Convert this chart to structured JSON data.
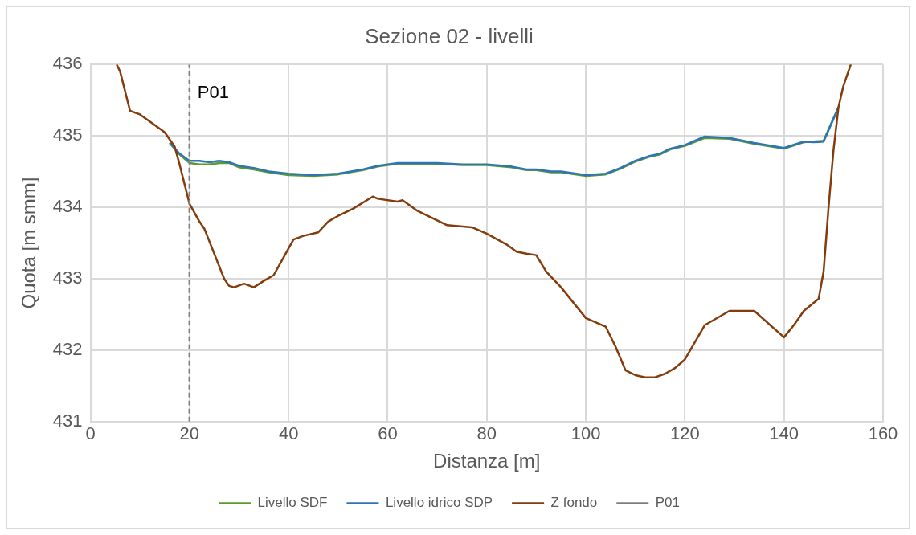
{
  "chart_data": {
    "type": "line",
    "title": "Sezione 02 - livelli",
    "xlabel": "Distanza [m]",
    "ylabel": "Quota [m smm]",
    "xlim": [
      0,
      160
    ],
    "xticks": [
      0,
      20,
      40,
      60,
      80,
      100,
      120,
      140,
      160
    ],
    "ylim": [
      431,
      436
    ],
    "yticks": [
      431,
      432,
      433,
      434,
      435,
      436
    ],
    "grid": true,
    "legend": "bottom",
    "marker": "none",
    "annotations": [
      {
        "text": "P01",
        "x": 20,
        "y": 435.6
      }
    ],
    "series": [
      {
        "name": "Livello SDF",
        "color": "#5b9b2c",
        "line_style": "solid",
        "x": [
          16,
          18,
          20,
          22,
          24,
          26,
          28,
          30,
          33,
          36,
          40,
          45,
          50,
          55,
          58,
          62,
          70,
          75,
          80,
          85,
          88,
          90,
          93,
          95,
          100,
          104,
          107,
          110,
          113,
          115,
          117,
          120,
          124,
          129,
          134,
          140,
          144,
          146,
          148,
          151
        ],
        "values": [
          434.9,
          434.74,
          434.62,
          434.6,
          434.6,
          434.62,
          434.62,
          434.56,
          434.53,
          434.49,
          434.45,
          434.44,
          434.46,
          434.52,
          434.57,
          434.61,
          434.61,
          434.59,
          434.59,
          434.56,
          434.52,
          434.52,
          434.49,
          434.49,
          434.44,
          434.46,
          434.54,
          434.64,
          434.71,
          434.74,
          434.81,
          434.86,
          434.97,
          434.96,
          434.89,
          434.82,
          434.91,
          434.92,
          434.93,
          435.4
        ]
      },
      {
        "name": "Livello idrico SDP",
        "color": "#2e75b6",
        "line_style": "solid",
        "x": [
          16,
          18,
          20,
          22,
          24,
          26,
          28,
          30,
          33,
          36,
          40,
          45,
          50,
          55,
          58,
          62,
          70,
          75,
          80,
          85,
          88,
          90,
          93,
          95,
          100,
          104,
          107,
          110,
          113,
          115,
          117,
          120,
          124,
          129,
          134,
          140,
          144,
          146,
          148,
          151
        ],
        "values": [
          434.9,
          434.75,
          434.65,
          434.65,
          434.63,
          434.65,
          434.63,
          434.58,
          434.55,
          434.5,
          434.47,
          434.45,
          434.47,
          434.53,
          434.58,
          434.62,
          434.62,
          434.6,
          434.6,
          434.57,
          434.53,
          434.53,
          434.5,
          434.5,
          434.45,
          434.47,
          434.55,
          434.65,
          434.72,
          434.75,
          434.82,
          434.87,
          434.99,
          434.97,
          434.9,
          434.83,
          434.92,
          434.91,
          434.92,
          435.4
        ]
      },
      {
        "name": "Z fondo",
        "color": "#843c0c",
        "line_style": "solid",
        "x": [
          5.3,
          6,
          8,
          10,
          13,
          15,
          17,
          18,
          20,
          22,
          23,
          25,
          27,
          28,
          29,
          31,
          33,
          35,
          37,
          39,
          41,
          43,
          46,
          48,
          50,
          53,
          57,
          58,
          62,
          63,
          66,
          69,
          72,
          77,
          80,
          84,
          86,
          88,
          90,
          92,
          95,
          100,
          104,
          106,
          108,
          110,
          112,
          114,
          116,
          118,
          120,
          124,
          129,
          134,
          140,
          142,
          144,
          147,
          148,
          149,
          150,
          151,
          152,
          153.5
        ],
        "values": [
          436.0,
          435.9,
          435.35,
          435.3,
          435.15,
          435.05,
          434.85,
          434.6,
          434.05,
          433.8,
          433.7,
          433.35,
          433.0,
          432.9,
          432.88,
          432.93,
          432.88,
          432.97,
          433.05,
          433.3,
          433.55,
          433.6,
          433.65,
          433.8,
          433.88,
          433.98,
          434.15,
          434.12,
          434.08,
          434.1,
          433.95,
          433.85,
          433.75,
          433.72,
          433.63,
          433.48,
          433.38,
          433.35,
          433.33,
          433.1,
          432.88,
          432.45,
          432.33,
          432.05,
          431.72,
          431.65,
          431.62,
          431.62,
          431.67,
          431.75,
          431.87,
          432.35,
          432.55,
          432.55,
          432.18,
          432.35,
          432.55,
          432.72,
          433.1,
          434.0,
          434.8,
          435.4,
          435.7,
          436.0
        ]
      },
      {
        "name": "P01",
        "color": "#7f7f7f",
        "line_style": "dashed",
        "x": [
          20,
          20
        ],
        "values": [
          431,
          436
        ]
      }
    ]
  }
}
